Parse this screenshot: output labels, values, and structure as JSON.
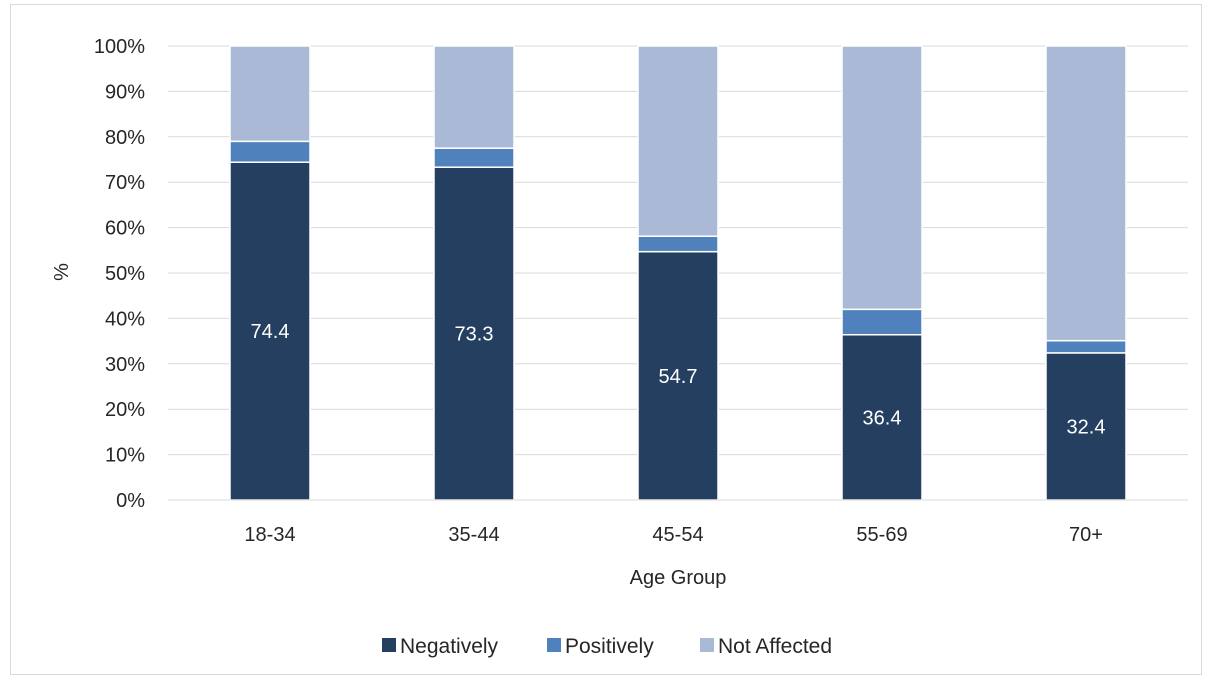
{
  "chart_data": {
    "type": "bar",
    "stacked": true,
    "percent_stacked": true,
    "categories": [
      "18-34",
      "35-44",
      "45-54",
      "55-69",
      "70+"
    ],
    "series": [
      {
        "name": "Negatively",
        "values": [
          74.4,
          73.3,
          54.7,
          36.4,
          32.4
        ],
        "color": "#243f60",
        "data_labels": [
          "74.4",
          "73.3",
          "54.7",
          "36.4",
          "32.4"
        ]
      },
      {
        "name": "Positively",
        "values": [
          4.6,
          4.2,
          3.4,
          5.6,
          2.7
        ],
        "color": "#4f81bd"
      },
      {
        "name": "Not Affected",
        "values": [
          21.0,
          22.5,
          41.9,
          58.0,
          64.9
        ],
        "color": "#aab9d6"
      }
    ],
    "xlabel": "Age Group",
    "ylabel": "%",
    "ylim": [
      0,
      100
    ],
    "y_ticks": [
      "0%",
      "10%",
      "20%",
      "30%",
      "40%",
      "50%",
      "60%",
      "70%",
      "80%",
      "90%",
      "100%"
    ],
    "grid": "horizontal",
    "legend_position": "bottom"
  }
}
